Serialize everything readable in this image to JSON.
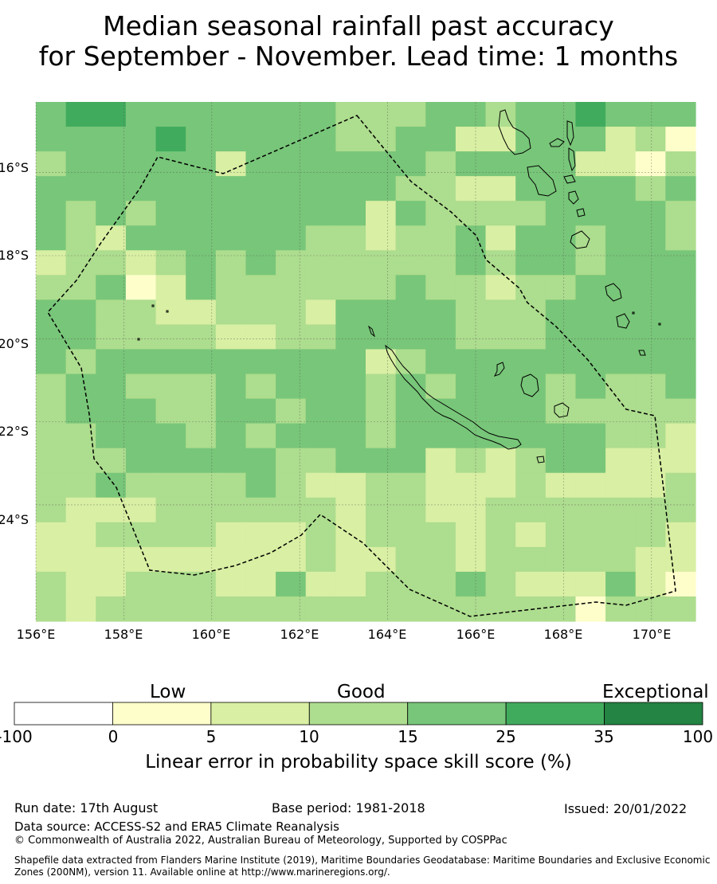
{
  "title_line1": "Median seasonal rainfall past accuracy",
  "title_line2": "for September - November. Lead time: 1 months",
  "map": {
    "lon_range": [
      156,
      171
    ],
    "lat_range": [
      -26.8,
      -14.3
    ],
    "lon_ticks": [
      "156°E",
      "158°E",
      "160°E",
      "162°E",
      "164°E",
      "166°E",
      "168°E",
      "170°E"
    ],
    "lat_ticks": [
      "16°S",
      "18°S",
      "20°S",
      "22°S",
      "24°S"
    ],
    "grid": true,
    "cell_levels": [
      [
        4,
        5,
        5,
        4,
        4,
        4,
        4,
        4,
        4,
        4,
        3,
        3,
        3,
        4,
        4,
        3,
        4,
        4,
        5,
        4,
        4,
        4
      ],
      [
        4,
        4,
        4,
        4,
        5,
        4,
        4,
        4,
        4,
        4,
        3,
        3,
        4,
        4,
        2,
        2,
        4,
        4,
        4,
        2,
        3,
        1
      ],
      [
        3,
        4,
        4,
        4,
        4,
        4,
        2,
        4,
        4,
        4,
        4,
        4,
        4,
        3,
        4,
        4,
        4,
        4,
        2,
        2,
        1,
        3
      ],
      [
        4,
        4,
        4,
        4,
        4,
        4,
        4,
        4,
        4,
        4,
        4,
        4,
        3,
        3,
        2,
        2,
        4,
        4,
        4,
        4,
        3,
        4
      ],
      [
        4,
        3,
        4,
        3,
        4,
        4,
        4,
        4,
        4,
        4,
        4,
        2,
        4,
        3,
        3,
        3,
        3,
        4,
        4,
        4,
        4,
        3
      ],
      [
        4,
        3,
        2,
        4,
        4,
        4,
        4,
        4,
        4,
        3,
        3,
        2,
        3,
        3,
        4,
        2,
        4,
        4,
        3,
        4,
        4,
        3
      ],
      [
        2,
        3,
        3,
        2,
        3,
        4,
        3,
        4,
        3,
        3,
        3,
        3,
        3,
        3,
        4,
        3,
        4,
        4,
        3,
        4,
        4,
        4
      ],
      [
        3,
        3,
        4,
        1,
        2,
        4,
        3,
        3,
        3,
        3,
        3,
        3,
        4,
        3,
        3,
        2,
        3,
        3,
        4,
        4,
        4,
        4
      ],
      [
        4,
        4,
        3,
        3,
        2,
        2,
        3,
        3,
        3,
        2,
        4,
        4,
        4,
        4,
        3,
        3,
        3,
        4,
        4,
        4,
        4,
        4
      ],
      [
        4,
        4,
        3,
        3,
        3,
        3,
        2,
        2,
        3,
        3,
        4,
        4,
        4,
        4,
        3,
        3,
        3,
        4,
        4,
        4,
        4,
        4
      ],
      [
        4,
        3,
        4,
        4,
        4,
        4,
        4,
        4,
        4,
        4,
        4,
        2,
        3,
        4,
        4,
        4,
        4,
        4,
        4,
        4,
        4,
        4
      ],
      [
        3,
        4,
        4,
        3,
        3,
        3,
        4,
        3,
        4,
        4,
        4,
        3,
        4,
        3,
        4,
        4,
        4,
        3,
        4,
        3,
        3,
        4
      ],
      [
        3,
        4,
        4,
        4,
        3,
        3,
        4,
        4,
        3,
        4,
        4,
        3,
        4,
        4,
        4,
        4,
        4,
        3,
        3,
        3,
        3,
        3
      ],
      [
        3,
        3,
        4,
        4,
        4,
        3,
        4,
        3,
        4,
        4,
        4,
        3,
        4,
        4,
        4,
        4,
        4,
        4,
        4,
        3,
        3,
        2
      ],
      [
        3,
        3,
        3,
        4,
        4,
        4,
        4,
        4,
        3,
        3,
        4,
        4,
        4,
        2,
        3,
        2,
        3,
        4,
        4,
        2,
        2,
        2
      ],
      [
        3,
        3,
        4,
        3,
        3,
        3,
        3,
        4,
        3,
        2,
        2,
        3,
        3,
        2,
        2,
        2,
        3,
        2,
        2,
        2,
        2,
        3
      ],
      [
        3,
        2,
        2,
        2,
        3,
        3,
        3,
        3,
        3,
        3,
        2,
        3,
        3,
        2,
        2,
        3,
        3,
        3,
        3,
        3,
        3,
        3
      ],
      [
        2,
        2,
        3,
        3,
        3,
        3,
        2,
        2,
        2,
        3,
        2,
        3,
        3,
        3,
        2,
        3,
        2,
        3,
        3,
        3,
        3,
        2
      ],
      [
        2,
        2,
        2,
        2,
        2,
        2,
        2,
        2,
        2,
        3,
        2,
        2,
        3,
        3,
        2,
        3,
        3,
        3,
        3,
        3,
        2,
        2
      ],
      [
        3,
        2,
        2,
        3,
        3,
        3,
        2,
        2,
        4,
        2,
        2,
        3,
        3,
        3,
        4,
        3,
        2,
        2,
        2,
        4,
        2,
        1
      ],
      [
        3,
        2,
        3,
        3,
        3,
        3,
        3,
        3,
        3,
        3,
        3,
        3,
        3,
        3,
        3,
        3,
        3,
        3,
        1,
        3,
        3,
        3
      ]
    ]
  },
  "colorbar": {
    "categories": [
      "Low",
      "Good",
      "Exceptional"
    ],
    "ticks": [
      "-100",
      "0",
      "5",
      "10",
      "15",
      "25",
      "35",
      "100"
    ],
    "colors": [
      "#ffffff",
      "#fefecb",
      "#d9efa3",
      "#addd8e",
      "#78c679",
      "#41ab5d",
      "#238443"
    ],
    "label": "Linear error in probability space skill score (%)"
  },
  "footer": {
    "run_date": "Run date: 17th August",
    "base_period": "Base period: 1981-2018",
    "issued": "Issued: 20/01/2022",
    "data_source": "Data source: ACCESS-S2 and ERA5 Climate Reanalysis",
    "copyright": "© Commonwealth of Australia 2022, Australian Bureau of Meteorology, Supported by COSPPac",
    "shapefile_line1": "Shapefile data extracted from Flanders Marine Institute (2019), Maritime Boundaries Geodatabase: Maritime Boundaries and Exclusive Economic",
    "shapefile_line2": "Zones (200NM), version 11. Available online at http://www.marineregions.org/."
  }
}
